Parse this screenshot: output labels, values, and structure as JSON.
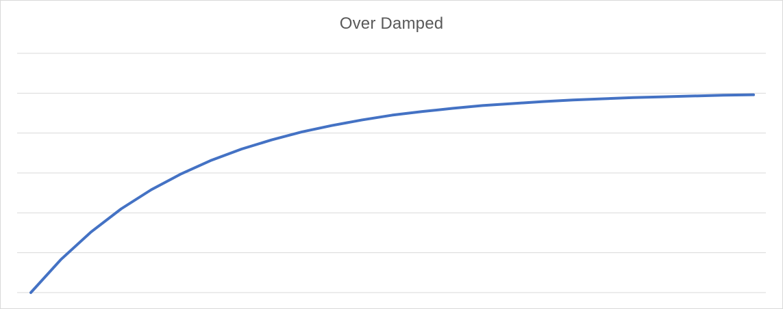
{
  "chart_data": {
    "type": "line",
    "title": "Over Damped",
    "xlabel": "",
    "ylabel": "",
    "x": [
      0,
      1,
      2,
      3,
      4,
      5,
      6,
      7,
      8,
      9,
      10,
      11,
      12,
      13,
      14,
      15,
      16,
      17,
      18,
      19,
      20,
      21,
      22,
      23,
      24
    ],
    "series": [
      {
        "values": [
          0.0,
          0.83,
          1.52,
          2.1,
          2.58,
          2.98,
          3.32,
          3.6,
          3.83,
          4.03,
          4.19,
          4.33,
          4.45,
          4.54,
          4.62,
          4.69,
          4.74,
          4.79,
          4.83,
          4.86,
          4.89,
          4.91,
          4.93,
          4.95,
          4.96
        ],
        "color": "#4472c4"
      }
    ],
    "ylim": [
      0,
      6
    ],
    "y_gridlines": [
      0,
      1,
      2,
      3,
      4,
      5,
      6
    ],
    "grid": true,
    "gridline_color": "#d9d9d9",
    "legend": "none",
    "axis_tick_labels": "none"
  }
}
